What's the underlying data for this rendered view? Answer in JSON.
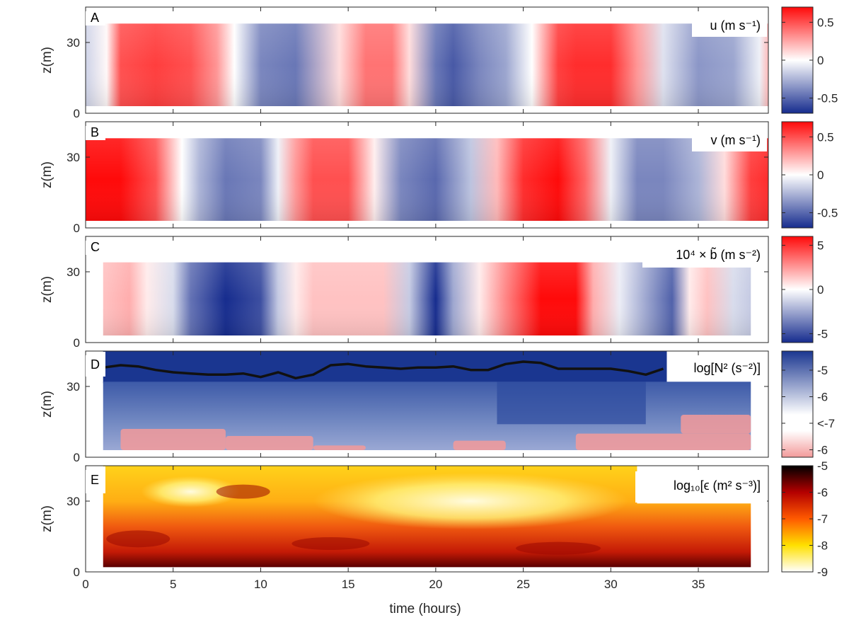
{
  "figure": {
    "xlabel": "time (hours)",
    "xticks": [
      0,
      5,
      10,
      15,
      20,
      25,
      30,
      35
    ],
    "xlim": [
      0,
      39
    ]
  },
  "chart_data": [
    {
      "panel": "A",
      "type": "heatmap",
      "variable_label": "u (m s⁻¹)",
      "ylabel": "z(m)",
      "yticks": [
        0,
        30
      ],
      "ylim": [
        0,
        45
      ],
      "colormap": "blue-white-red",
      "colorbar": {
        "ticks": [
          "0.5",
          "0",
          "-0.5"
        ],
        "tick_values": [
          0.5,
          0,
          -0.5
        ],
        "range": [
          -0.7,
          0.7
        ]
      },
      "data_extent": {
        "t": [
          0,
          39
        ],
        "z": [
          3,
          38
        ]
      },
      "profile": {
        "t": [
          0,
          1.2,
          2,
          4,
          6,
          7.5,
          8.5,
          10,
          12,
          14.5,
          16,
          17.5,
          18.5,
          20,
          21,
          22.5,
          24,
          25.5,
          27,
          28,
          30,
          31.5,
          33,
          35,
          37,
          38.5,
          39
        ],
        "value": [
          -0.15,
          0.02,
          0.5,
          0.55,
          0.5,
          0.3,
          0.0,
          -0.4,
          -0.45,
          0.1,
          0.4,
          0.4,
          0.1,
          -0.45,
          -0.55,
          -0.4,
          -0.3,
          0.0,
          0.55,
          0.6,
          0.6,
          0.3,
          -0.1,
          -0.35,
          -0.3,
          -0.05,
          0.2
        ]
      }
    },
    {
      "panel": "B",
      "type": "heatmap",
      "variable_label": "v (m s⁻¹)",
      "ylabel": "z(m)",
      "yticks": [
        0,
        30
      ],
      "ylim": [
        0,
        45
      ],
      "colormap": "blue-white-red",
      "colorbar": {
        "ticks": [
          "0.5",
          "0",
          "-0.5"
        ],
        "tick_values": [
          0.5,
          0,
          -0.5
        ],
        "range": [
          -0.7,
          0.7
        ]
      },
      "data_extent": {
        "t": [
          0,
          39
        ],
        "z": [
          3,
          38
        ]
      },
      "profile": {
        "t": [
          0,
          2,
          4,
          5.5,
          6.5,
          8,
          10,
          11,
          12,
          13,
          15,
          16.5,
          18,
          20,
          22,
          23.5,
          25,
          27,
          28.5,
          30,
          31.5,
          33,
          35,
          36.5,
          38,
          39
        ],
        "value": [
          0.7,
          0.7,
          0.5,
          0.0,
          -0.25,
          -0.45,
          -0.4,
          -0.05,
          0.3,
          0.5,
          0.5,
          0.05,
          -0.4,
          -0.5,
          -0.2,
          0.2,
          0.6,
          0.7,
          0.45,
          -0.05,
          -0.4,
          -0.4,
          -0.25,
          0.1,
          0.55,
          0.6
        ]
      }
    },
    {
      "panel": "C",
      "type": "heatmap",
      "variable_label": "10⁴ × b̃ (m s⁻²)",
      "ylabel": "z(m)",
      "yticks": [
        0,
        30
      ],
      "ylim": [
        0,
        45
      ],
      "colormap": "blue-white-red",
      "colorbar": {
        "ticks": [
          "5",
          "0",
          "-5"
        ],
        "tick_values": [
          5,
          0,
          -5
        ],
        "range": [
          -6,
          6
        ]
      },
      "data_extent": {
        "t": [
          1,
          38
        ],
        "z": [
          3,
          34
        ]
      },
      "profile": {
        "t": [
          1,
          2.5,
          3.5,
          5,
          6,
          8,
          10,
          11,
          12,
          13,
          15,
          17,
          18.5,
          20,
          21,
          22.5,
          24,
          26,
          28,
          29,
          30.5,
          32,
          33.5,
          34.5,
          35.5,
          37,
          38
        ],
        "value": [
          1.5,
          2.0,
          0.5,
          -1.0,
          -4.0,
          -6.0,
          -5.0,
          -1.5,
          0.5,
          1.5,
          1.5,
          1.5,
          -1.5,
          -6.0,
          -2.5,
          0.5,
          3.0,
          6.0,
          6.0,
          2.0,
          -0.5,
          -2.5,
          -4.5,
          0.5,
          1.5,
          -1.0,
          -1.5
        ]
      }
    },
    {
      "panel": "D",
      "type": "heatmap",
      "variable_label": "log[N² (s⁻²)]",
      "ylabel": "z(m)",
      "yticks": [
        0,
        30
      ],
      "ylim": [
        0,
        45
      ],
      "colormap": "blue-white-pink (reversed log scale)",
      "colorbar": {
        "ticks": [
          "-5",
          "-6",
          "<-7",
          "-6"
        ],
        "range": [
          -4.2,
          -7.8
        ]
      },
      "data_extent": {
        "t": [
          1,
          38
        ],
        "z": [
          3,
          32
        ]
      },
      "mixed_layer_line": {
        "t": [
          1,
          2,
          3,
          4,
          5,
          6,
          7,
          8,
          9,
          10,
          11,
          12,
          13,
          14,
          15,
          16,
          17,
          18,
          19,
          20,
          21,
          22,
          23,
          24,
          25,
          26,
          27,
          28,
          29,
          30,
          31,
          32,
          33
        ],
        "z": [
          38,
          39,
          38.5,
          37,
          36,
          35.5,
          35,
          35,
          35.5,
          34,
          36,
          33.5,
          35,
          39,
          39.5,
          38.5,
          38,
          37.5,
          38,
          38,
          38.5,
          37,
          37,
          39.5,
          40.5,
          40,
          37.5,
          37.5,
          37.5,
          37.5,
          36.5,
          35,
          37.5
        ]
      }
    },
    {
      "panel": "E",
      "type": "heatmap",
      "variable_label": "log₁₀[ϵ (m² s⁻³)]",
      "ylabel": "z(m)",
      "yticks": [
        0,
        30
      ],
      "ylim": [
        0,
        45
      ],
      "colormap": "hot (reversed)",
      "colorbar": {
        "ticks": [
          "-5",
          "-6",
          "-7",
          "-8",
          "-9"
        ],
        "tick_values": [
          -5,
          -6,
          -7,
          -8,
          -9
        ],
        "range": [
          -9,
          -5
        ]
      },
      "data_extent": {
        "t": [
          1,
          38
        ],
        "z": [
          2,
          45
        ]
      }
    }
  ]
}
